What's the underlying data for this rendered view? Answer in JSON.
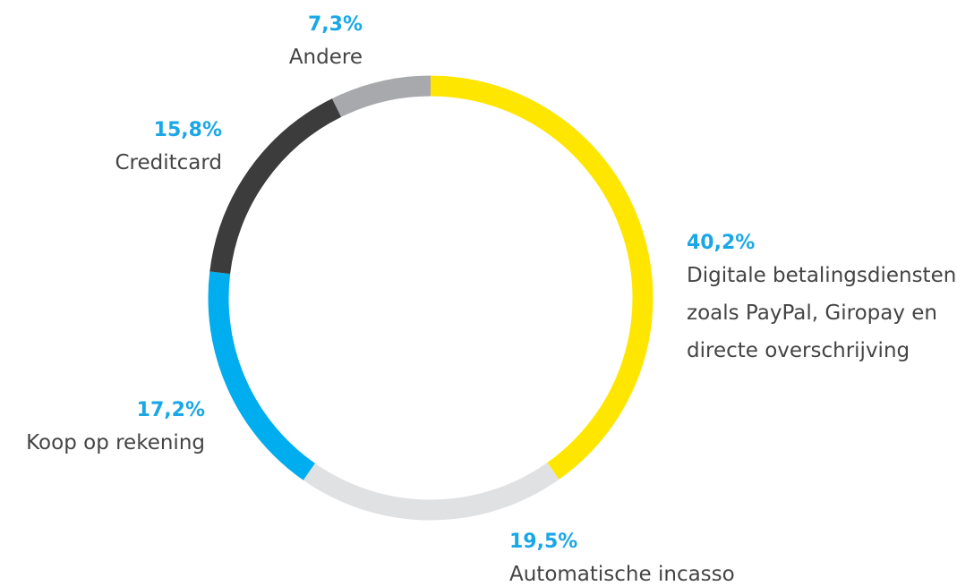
{
  "chart_data": {
    "type": "donut",
    "categories": [
      "Digitale betalingsdiensten zoals PayPal, Giropay en directe overschrijving",
      "Automatische incasso",
      "Koop op rekening",
      "Creditcard",
      "Andere"
    ],
    "values": [
      40.2,
      19.5,
      17.2,
      15.8,
      7.3
    ],
    "value_labels": [
      "40,2%",
      "19,5%",
      "17,2%",
      "15,8%",
      "7,3%"
    ],
    "colors": [
      "#ffe600",
      "#e0e1e3",
      "#00adef",
      "#3c3c3c",
      "#a7a9ac"
    ]
  }
}
